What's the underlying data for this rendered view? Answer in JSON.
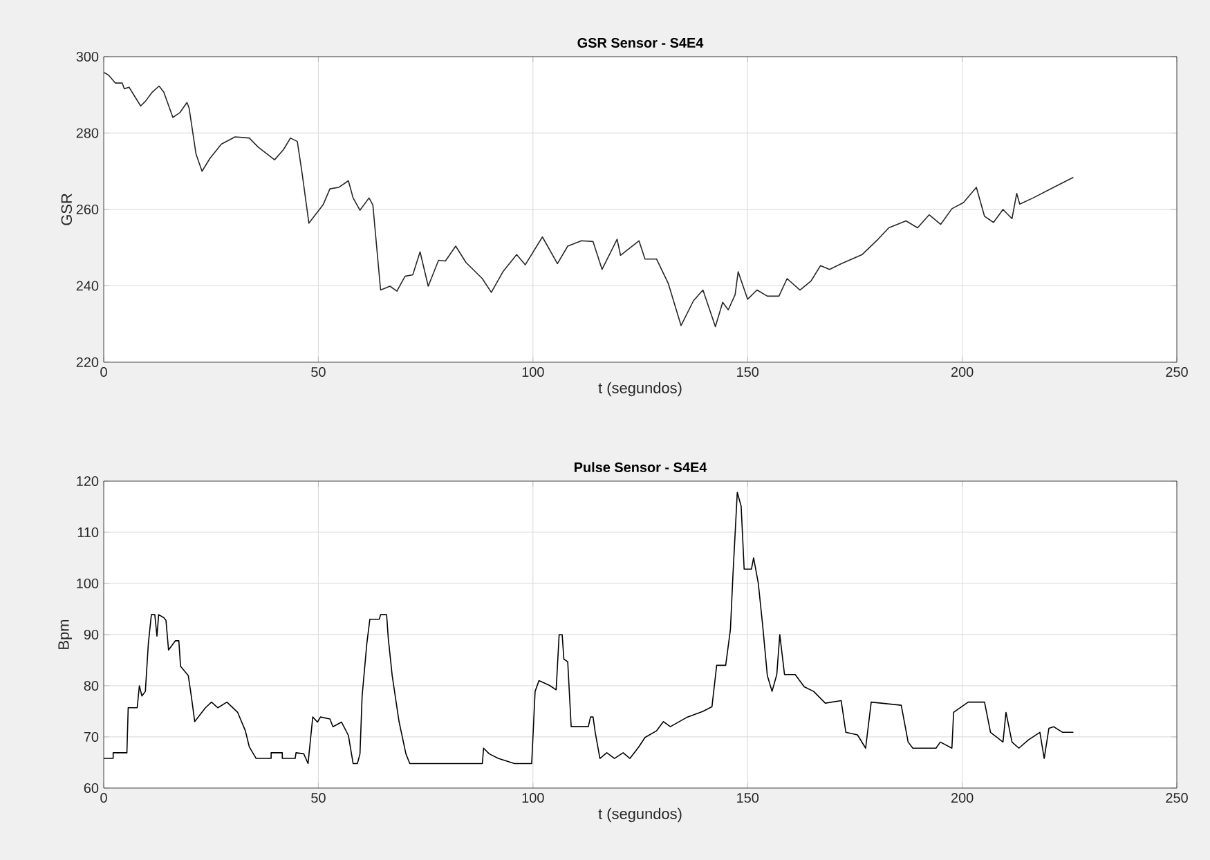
{
  "chart_data": [
    {
      "type": "line",
      "title": "GSR Sensor - S4E4",
      "xlabel": "t (segundos)",
      "ylabel": "GSR",
      "xlim": [
        0,
        250
      ],
      "xticks": [
        0,
        50,
        100,
        150,
        200,
        250
      ],
      "ylim": [
        220,
        300
      ],
      "yticks": [
        220,
        240,
        260,
        280,
        300
      ],
      "grid": true,
      "series": [
        {
          "color": "#262626",
          "x": [
            0,
            1.1,
            2.7,
            4.3,
            4.8,
            5.9,
            7,
            8.6,
            9.7,
            11.3,
            12.9,
            14,
            16.1,
            17.7,
            19.4,
            19.9,
            21.5,
            22.9,
            24.7,
            27.4,
            30.6,
            33.9,
            36,
            39.8,
            41.9,
            43.5,
            45.1,
            46.2,
            47.8,
            51.1,
            52.7,
            54.8,
            57,
            58.1,
            59.7,
            61.8,
            62.7,
            64.5,
            66.7,
            68.3,
            70.2,
            72,
            73.7,
            75.6,
            78,
            79.6,
            82,
            84.4,
            88.2,
            90.3,
            93,
            96.2,
            98.2,
            102.2,
            105.7,
            108.1,
            111.3,
            114,
            116.1,
            119.6,
            120.4,
            124.7,
            126.1,
            128.8,
            131.5,
            134.5,
            137.4,
            139.6,
            142.5,
            144.2,
            145.5,
            147.1,
            147.8,
            150,
            152.2,
            154.6,
            157.3,
            159.2,
            162.2,
            164.8,
            167,
            169.1,
            171.8,
            176.7,
            180.4,
            182.9,
            186.9,
            189.6,
            192.3,
            195,
            197.6,
            200.3,
            203.3,
            205.2,
            207.3,
            209.5,
            211.6,
            212.7,
            213.4,
            216.5,
            221.3,
            225.9
          ],
          "values": [
            295.9,
            295.2,
            293.1,
            293.1,
            291.6,
            292,
            290,
            287.1,
            288.3,
            290.7,
            292.3,
            290.7,
            284.1,
            285.3,
            288,
            286.5,
            274.5,
            270,
            273.3,
            277.1,
            279,
            278.7,
            276.3,
            273,
            275.7,
            278.7,
            277.8,
            269.6,
            256.4,
            261.2,
            265.4,
            265.8,
            267.5,
            263,
            259.8,
            263,
            261.2,
            238.9,
            239.9,
            238.6,
            242.5,
            242.9,
            248.9,
            239.9,
            246.7,
            246.5,
            250.4,
            246.1,
            241.9,
            238.3,
            243.7,
            248.2,
            245.5,
            252.8,
            245.8,
            250.4,
            251.8,
            251.6,
            244.3,
            252.2,
            248,
            251.8,
            247,
            247,
            240.7,
            229.6,
            236.1,
            238.9,
            229.3,
            235.7,
            233.7,
            237.7,
            243.7,
            236.5,
            238.9,
            237.3,
            237.3,
            241.9,
            238.9,
            241.3,
            245.3,
            244.3,
            245.8,
            248.2,
            252.2,
            255.2,
            257,
            255.2,
            258.6,
            256.1,
            260.2,
            261.8,
            265.8,
            258.2,
            256.6,
            260,
            257.6,
            264.2,
            261.4,
            263,
            265.8,
            268.4
          ]
        }
      ]
    },
    {
      "type": "line",
      "title": "Pulse Sensor - S4E4",
      "xlabel": "t (segundos)",
      "ylabel": "Bpm",
      "xlim": [
        0,
        250
      ],
      "xticks": [
        0,
        50,
        100,
        150,
        200,
        250
      ],
      "ylim": [
        60,
        120
      ],
      "yticks": [
        60,
        70,
        80,
        90,
        100,
        110,
        120
      ],
      "grid": true,
      "series": [
        {
          "color": "#000000",
          "x": [
            0,
            2.2,
            2.2,
            5.4,
            5.7,
            7.8,
            8.3,
            8.9,
            9.7,
            10.4,
            11.1,
            11.9,
            12.4,
            12.8,
            14,
            14.5,
            15.1,
            16.7,
            17.5,
            17.9,
            19.7,
            20.4,
            21.2,
            23.7,
            25.1,
            26.6,
            28.7,
            31.2,
            33,
            33.9,
            35.5,
            39,
            39,
            41.6,
            41.6,
            44.6,
            44.8,
            46.6,
            47.6,
            48.7,
            49.8,
            50.5,
            52.7,
            53.4,
            55.4,
            57,
            58.1,
            59.1,
            59.7,
            60.2,
            61.3,
            62,
            64.2,
            64.5,
            65.9,
            66.3,
            67.2,
            68.8,
            70.4,
            71.3,
            88.2,
            88.5,
            89.8,
            91.9,
            95.7,
            99.7,
            100.5,
            101.4,
            103.8,
            105.4,
            106.1,
            106.8,
            107.2,
            108.1,
            108.9,
            112.9,
            113.4,
            114,
            114.5,
            115.6,
            117.2,
            119,
            121,
            122.6,
            124.7,
            126.1,
            128.8,
            130.4,
            132,
            135.8,
            139.6,
            141.7,
            142.8,
            144.9,
            146,
            146.6,
            147.6,
            148.5,
            149.2,
            150.9,
            151.4,
            152.5,
            153.5,
            154.6,
            155.7,
            156.8,
            157.5,
            158.6,
            161.1,
            163.2,
            165.4,
            168.1,
            171.8,
            172.9,
            175.6,
            177.5,
            178.8,
            185.8,
            187.4,
            188.5,
            193.9,
            194.9,
            197.6,
            198,
            201.4,
            205.2,
            206.6,
            209.5,
            210.2,
            211.6,
            213.2,
            215.4,
            218.1,
            219.1,
            220.2,
            221.3,
            223.4,
            225.9
          ],
          "values": [
            65.8,
            65.8,
            66.9,
            66.9,
            75.7,
            75.7,
            80,
            78,
            78.9,
            88.3,
            93.9,
            93.9,
            89.7,
            93.9,
            93.3,
            92.8,
            87,
            88.8,
            88.8,
            83.8,
            82,
            78,
            73,
            75.7,
            76.8,
            75.7,
            76.8,
            74.8,
            71.2,
            68.1,
            65.8,
            65.8,
            66.9,
            66.9,
            65.8,
            65.8,
            66.9,
            66.7,
            64.8,
            73.9,
            72.9,
            73.9,
            73.5,
            72,
            72.9,
            70.3,
            64.8,
            64.8,
            66.7,
            78,
            88.3,
            93,
            93,
            93.9,
            93.9,
            89.2,
            82,
            73,
            66.7,
            64.8,
            64.8,
            67.8,
            66.7,
            65.8,
            64.8,
            64.8,
            78.9,
            81,
            80.1,
            79.2,
            90,
            90,
            85.2,
            84.7,
            72,
            72,
            73.9,
            73.9,
            70.9,
            65.8,
            66.9,
            65.8,
            66.9,
            65.8,
            68.1,
            69.9,
            71.2,
            73,
            72,
            73.8,
            75,
            75.9,
            84,
            84,
            91,
            101.8,
            117.8,
            115.1,
            102.8,
            102.8,
            105,
            100,
            91.9,
            82,
            78.9,
            82.2,
            90,
            82.2,
            82.2,
            79.8,
            78.9,
            76.6,
            77.1,
            70.9,
            70.4,
            67.8,
            76.8,
            76.2,
            69,
            67.8,
            67.8,
            69,
            67.8,
            74.8,
            76.8,
            76.8,
            70.9,
            69,
            74.8,
            69,
            67.8,
            69.4,
            70.9,
            65.8,
            71.7,
            72,
            70.9,
            70.9
          ]
        }
      ]
    }
  ]
}
